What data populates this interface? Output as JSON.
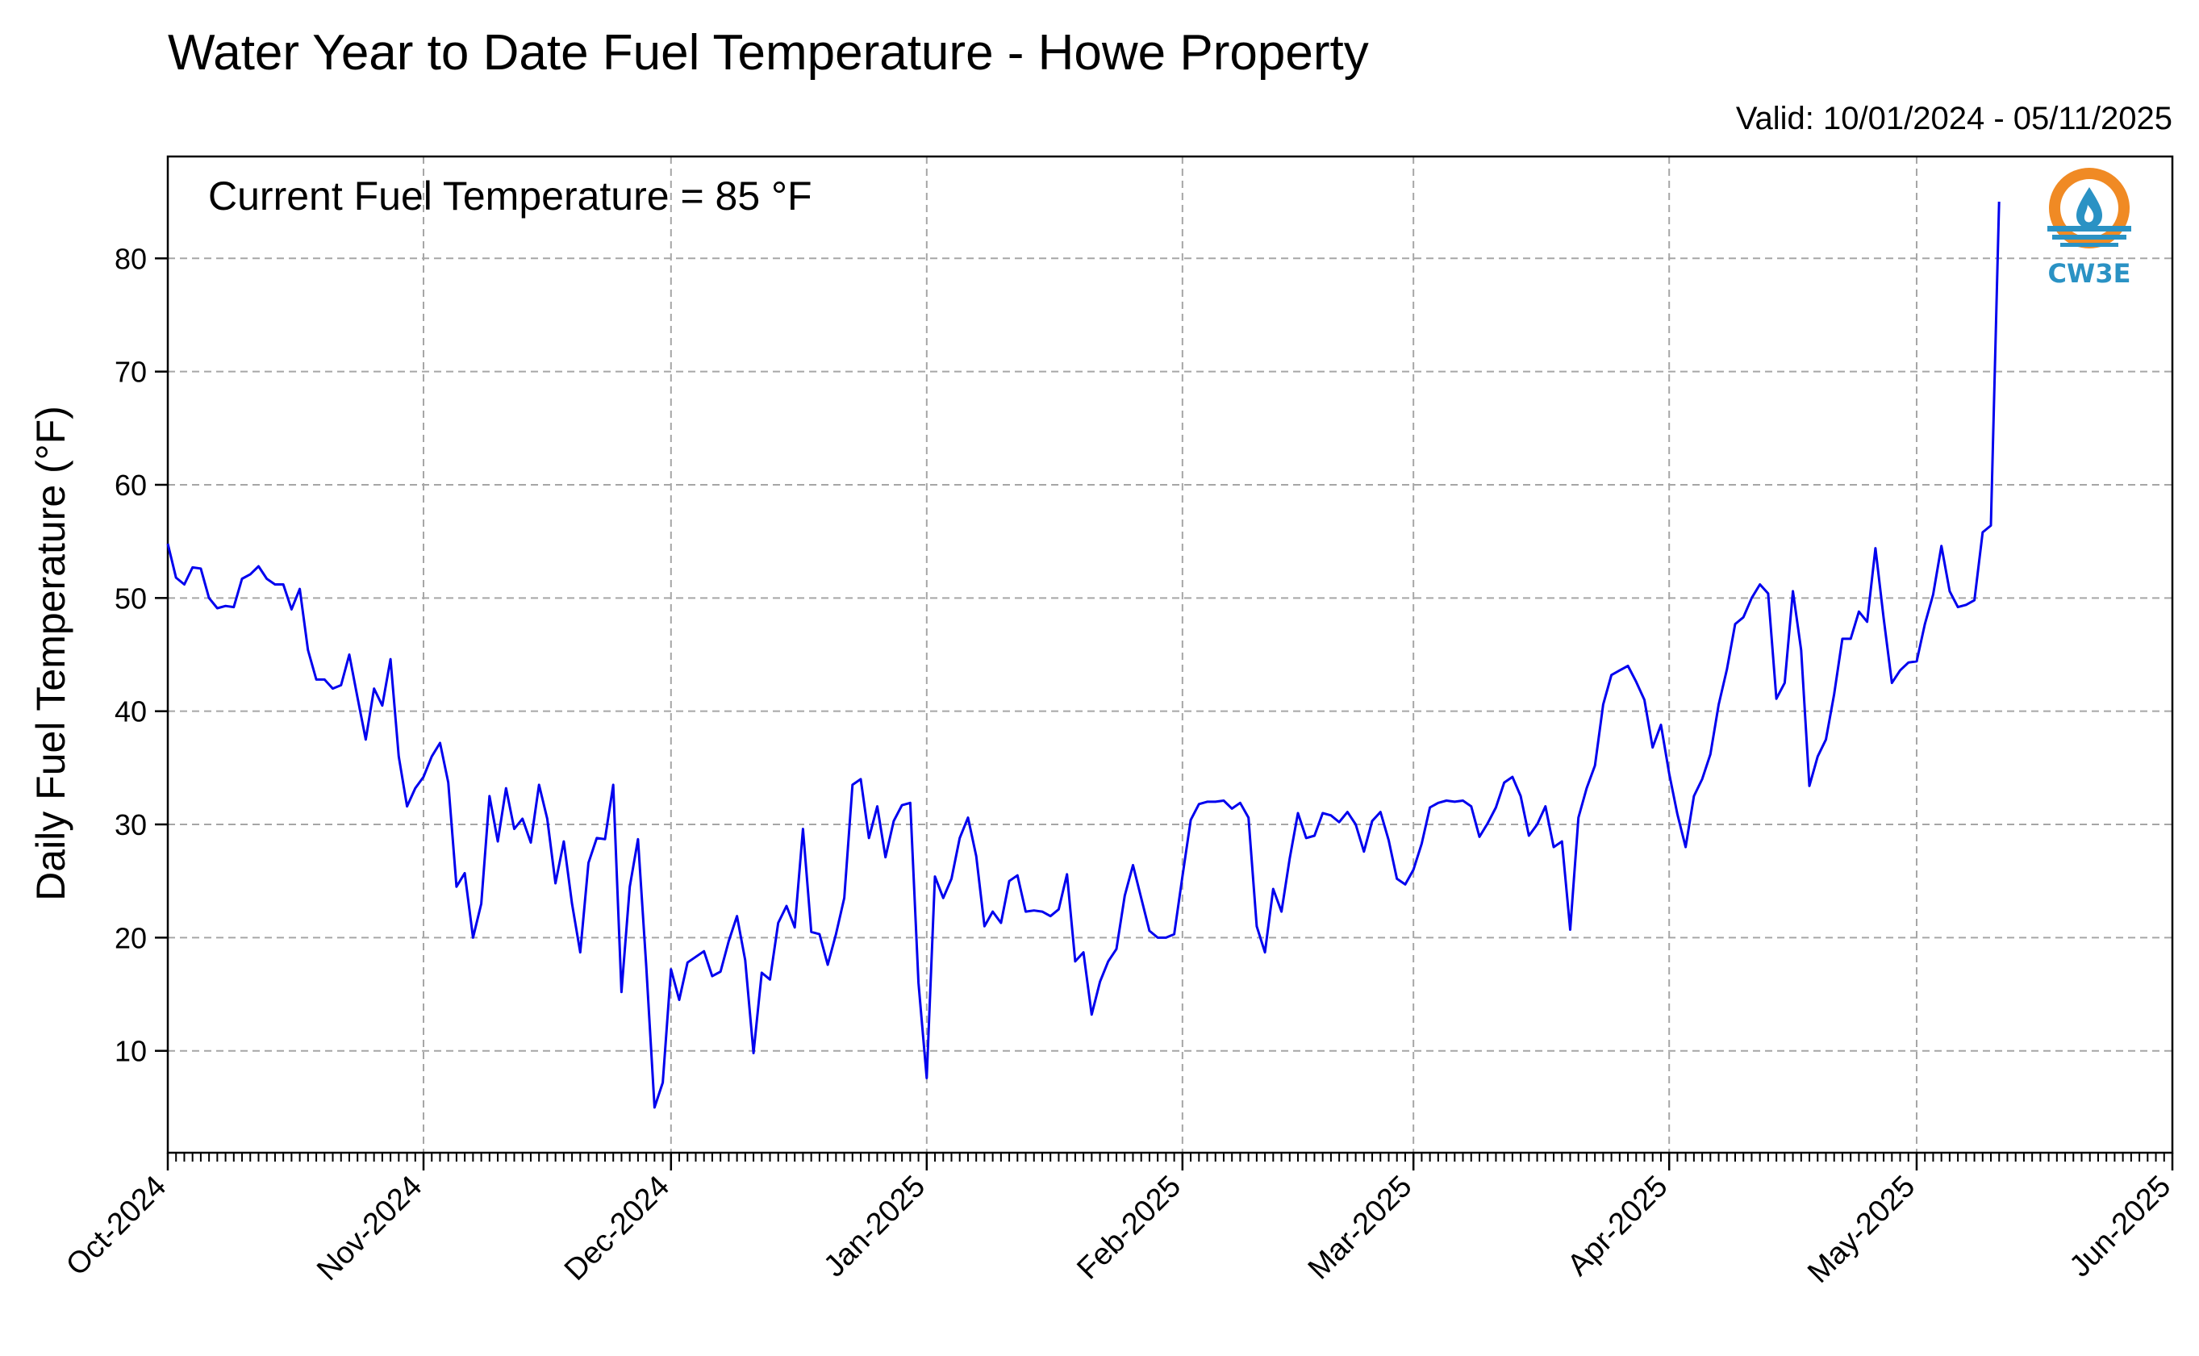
{
  "chart_data": {
    "type": "line",
    "title": "Water Year to Date Fuel Temperature - Howe Property",
    "subtitle": "Valid: 10/01/2024 - 05/11/2025",
    "annotation": "Current Fuel Temperature = 85 °F",
    "ylabel": "Daily Fuel Temperature (°F)",
    "xlabel": "",
    "xlim": [
      "2024-10-01",
      "2025-06-01"
    ],
    "ylim": [
      1,
      89
    ],
    "yticks": [
      10,
      20,
      30,
      40,
      50,
      60,
      70,
      80
    ],
    "ytick_labels": [
      "10",
      "20",
      "30",
      "40",
      "50",
      "60",
      "70",
      "80"
    ],
    "xticks": [
      "2024-10-01",
      "2024-11-01",
      "2024-12-01",
      "2025-01-01",
      "2025-02-01",
      "2025-03-01",
      "2025-04-01",
      "2025-05-01",
      "2025-06-01"
    ],
    "xtick_labels": [
      "Oct-2024",
      "Nov-2024",
      "Dec-2024",
      "Jan-2025",
      "Feb-2025",
      "Mar-2025",
      "Apr-2025",
      "May-2025",
      "Jun-2025"
    ],
    "grid": true,
    "series": [
      {
        "color": "#0000ee",
        "start_date": "2024-10-01",
        "end_date": "2025-05-11",
        "values": [
          54.8,
          51.8,
          51.2,
          52.7,
          52.6,
          50.0,
          49.1,
          49.3,
          49.2,
          51.7,
          52.1,
          52.8,
          51.7,
          51.2,
          51.2,
          49.0,
          50.8,
          45.4,
          42.8,
          42.8,
          42.0,
          42.3,
          45.0,
          41.2,
          37.5,
          42.0,
          40.5,
          44.6,
          36.0,
          31.6,
          33.2,
          34.2,
          36.0,
          37.2,
          33.7,
          24.5,
          25.7,
          20.0,
          23.0,
          32.5,
          28.5,
          33.2,
          29.6,
          30.5,
          28.4,
          33.5,
          30.5,
          24.8,
          28.5,
          23.0,
          18.7,
          26.6,
          28.8,
          28.7,
          33.5,
          15.2,
          24.5,
          28.7,
          17.5,
          5.0,
          7.2,
          17.2,
          14.5,
          17.8,
          18.3,
          18.8,
          16.6,
          17.0,
          19.7,
          21.9,
          18.0,
          9.8,
          16.9,
          16.3,
          21.3,
          22.8,
          20.9,
          29.6,
          20.5,
          20.3,
          17.6,
          20.3,
          23.5,
          33.5,
          34.0,
          28.8,
          31.6,
          27.1,
          30.3,
          31.7,
          31.9,
          16.0,
          7.6,
          25.4,
          23.5,
          25.2,
          28.8,
          30.6,
          27.2,
          21.0,
          22.3,
          21.3,
          25.0,
          25.5,
          22.3,
          22.4,
          22.3,
          21.9,
          22.5,
          25.6,
          17.9,
          18.7,
          13.2,
          16.1,
          17.9,
          19.0,
          23.7,
          26.4,
          23.5,
          20.6,
          20.0,
          20.0,
          20.3,
          25.4,
          30.4,
          31.8,
          32.0,
          32.0,
          32.1,
          31.4,
          31.9,
          30.6,
          21.0,
          18.7,
          24.3,
          22.3,
          27.0,
          31.0,
          28.8,
          29.0,
          31.0,
          30.8,
          30.2,
          31.1,
          30.0,
          27.6,
          30.3,
          31.1,
          28.6,
          25.2,
          24.7,
          26.0,
          28.3,
          31.5,
          31.9,
          32.1,
          32.0,
          32.1,
          31.6,
          28.9,
          30.1,
          31.5,
          33.7,
          34.2,
          32.5,
          29.0,
          30.0,
          31.6,
          28.0,
          28.5,
          20.7,
          30.6,
          33.2,
          35.2,
          40.6,
          43.2,
          43.6,
          44.0,
          42.6,
          41.0,
          36.8,
          38.8,
          34.5,
          30.9,
          28.0,
          32.5,
          34.0,
          36.2,
          40.6,
          43.7,
          47.7,
          48.3,
          50.0,
          51.2,
          50.4,
          41.1,
          42.5,
          50.6,
          45.4,
          33.4,
          36.0,
          37.5,
          41.5,
          46.4,
          46.4,
          48.8,
          47.9,
          54.4,
          48.2,
          42.5,
          43.6,
          44.3,
          44.4,
          47.7,
          50.3,
          54.6,
          50.6,
          49.2,
          49.4,
          49.8,
          55.8,
          56.4,
          85.0
        ]
      }
    ]
  },
  "logo": {
    "text": "CW3E",
    "colors": {
      "ring": "#f08a24",
      "blue": "#2a92c4"
    },
    "icon": "water-drop-flame-icon"
  }
}
